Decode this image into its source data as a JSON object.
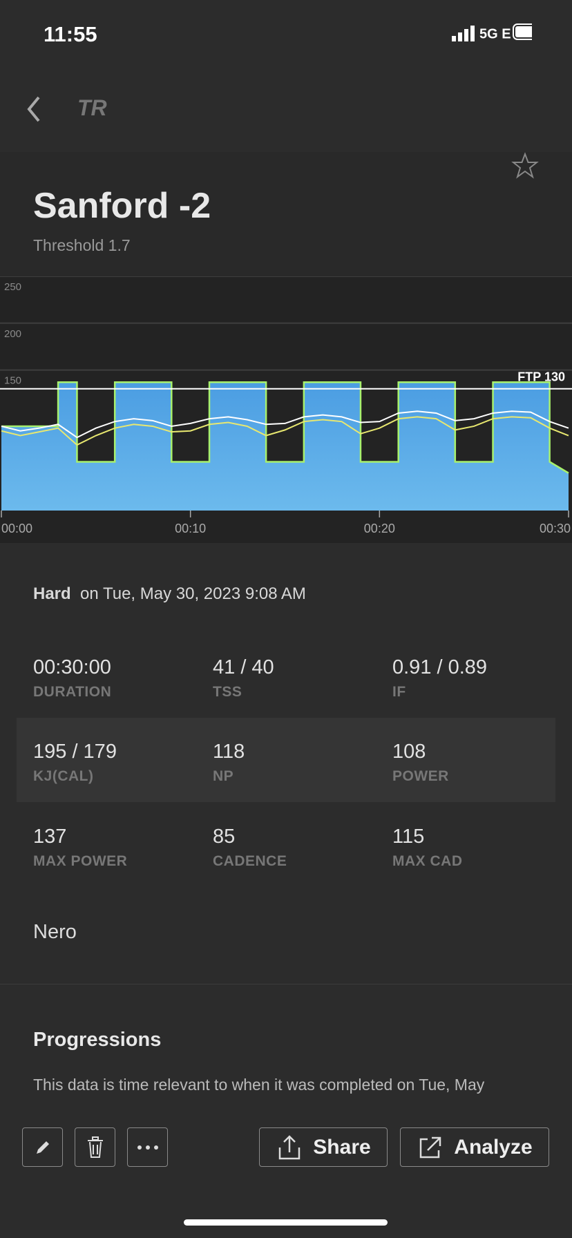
{
  "status": {
    "time": "11:55",
    "network": "5G E"
  },
  "nav": {
    "logo": "TR"
  },
  "header": {
    "title": "Sanford -2",
    "subtitle": "Threshold 1.7"
  },
  "chart_data": {
    "type": "line",
    "xlim": [
      0,
      30
    ],
    "ylim": [
      0,
      250
    ],
    "yticks": [
      150,
      200,
      250
    ],
    "xticks": [
      {
        "value": 0,
        "label": "00:00"
      },
      {
        "value": 10,
        "label": "00:10"
      },
      {
        "value": 20,
        "label": "00:20"
      },
      {
        "value": 30,
        "label": "00:30"
      }
    ],
    "ftp": {
      "value": 130,
      "label": "FTP 130"
    },
    "grid": true,
    "workout": {
      "color": "#4fa3e4",
      "outline": "#a8f06c",
      "x": [
        0,
        3,
        3,
        4,
        4,
        6,
        6,
        9,
        9,
        11,
        11,
        14,
        14,
        16,
        16,
        19,
        19,
        21,
        21,
        24,
        24,
        26,
        26,
        29,
        29,
        30
      ],
      "values": [
        90,
        90,
        137,
        137,
        52,
        52,
        137,
        137,
        52,
        52,
        137,
        137,
        52,
        52,
        137,
        137,
        52,
        52,
        137,
        137,
        52,
        52,
        137,
        137,
        52,
        40
      ]
    },
    "x": [
      0,
      1,
      2,
      3,
      4,
      5,
      6,
      7,
      8,
      9,
      10,
      11,
      12,
      13,
      14,
      15,
      16,
      17,
      18,
      19,
      20,
      21,
      22,
      23,
      24,
      25,
      26,
      27,
      28,
      29,
      30
    ],
    "series": [
      {
        "color": "#e8e870",
        "values": [
          85,
          80,
          84,
          88,
          70,
          80,
          88,
          92,
          90,
          84,
          85,
          92,
          94,
          90,
          80,
          86,
          95,
          97,
          95,
          82,
          88,
          98,
          100,
          98,
          86,
          90,
          98,
          100,
          99,
          88,
          80
        ]
      },
      {
        "color": "#ffffff",
        "values": [
          90,
          85,
          88,
          92,
          78,
          88,
          95,
          98,
          96,
          90,
          93,
          98,
          100,
          97,
          92,
          93,
          100,
          102,
          100,
          94,
          95,
          104,
          106,
          104,
          96,
          98,
          104,
          106,
          105,
          95,
          88
        ]
      }
    ]
  },
  "session": {
    "difficulty": "Hard",
    "date": "on Tue, May 30, 2023 9:08 AM"
  },
  "stats": [
    {
      "value": "00:30:00",
      "label": "DURATION"
    },
    {
      "value": "41 / 40",
      "label": "TSS"
    },
    {
      "value": "0.91 / 0.89",
      "label": "IF"
    },
    {
      "value": "195 / 179",
      "label": "KJ(CAL)"
    },
    {
      "value": "118",
      "label": "NP"
    },
    {
      "value": "108",
      "label": "POWER"
    },
    {
      "value": "137",
      "label": "MAX POWER"
    },
    {
      "value": "85",
      "label": "CADENCE"
    },
    {
      "value": "115",
      "label": "MAX CAD"
    }
  ],
  "device": "Nero",
  "progressions": {
    "title": "Progressions",
    "text": "This data is time relevant to when it was completed on Tue, May"
  },
  "toolbar": {
    "share": "Share",
    "analyze": "Analyze"
  }
}
